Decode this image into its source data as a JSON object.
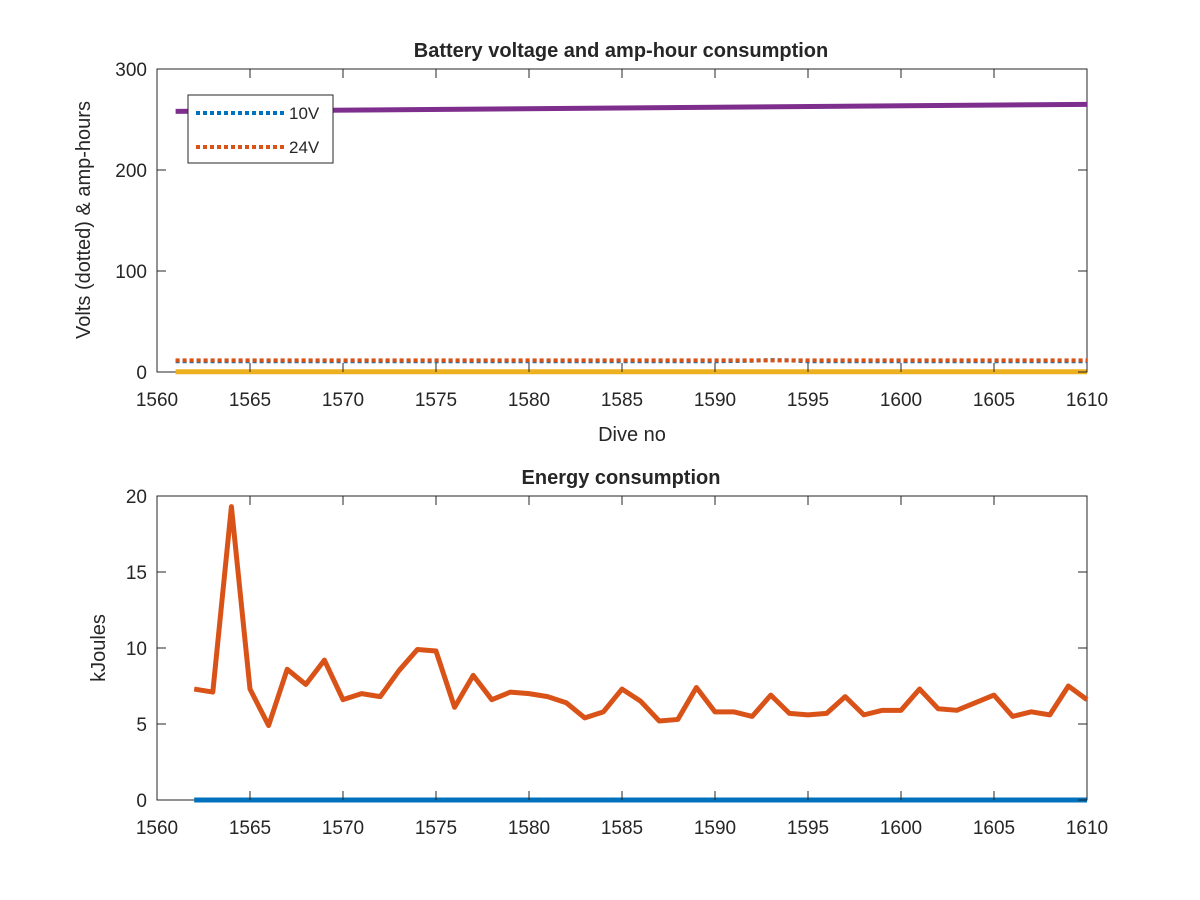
{
  "chart_data": [
    {
      "type": "line",
      "title": "Battery voltage and amp-hour consumption",
      "xlabel": "Dive no",
      "ylabel": "Volts (dotted) & amp-hours",
      "xlim": [
        1560,
        1610
      ],
      "ylim": [
        0,
        300
      ],
      "xticks": [
        1560,
        1565,
        1570,
        1575,
        1580,
        1585,
        1590,
        1595,
        1600,
        1605,
        1610
      ],
      "yticks": [
        0,
        100,
        200,
        300
      ],
      "legend": {
        "placement": "top-left",
        "entries": [
          "10V",
          "24V"
        ]
      },
      "series": [
        {
          "name": "10V",
          "style": "dotted",
          "color": "#0072BD",
          "x": [
            1561,
            1565,
            1570,
            1575,
            1580,
            1585,
            1590,
            1592,
            1593,
            1594,
            1595,
            1600,
            1605,
            1610
          ],
          "y": [
            10.6,
            10.6,
            10.6,
            10.6,
            10.6,
            10.6,
            10.6,
            11.2,
            11.8,
            11.5,
            10.6,
            10.6,
            10.6,
            10.6
          ]
        },
        {
          "name": "24V",
          "style": "dotted",
          "color": "#D95319",
          "x": [
            1561,
            1570,
            1580,
            1590,
            1600,
            1610
          ],
          "y": [
            11.5,
            11.5,
            11.5,
            11.5,
            11.5,
            11.5
          ]
        },
        {
          "style": "solid",
          "color": "#EDB120",
          "x": [
            1561,
            1610
          ],
          "y": [
            0.2,
            0.2
          ]
        },
        {
          "style": "solid",
          "color": "#7E2F8E",
          "x": [
            1561,
            1610
          ],
          "y": [
            258,
            265
          ]
        }
      ]
    },
    {
      "type": "line",
      "title": "Energy consumption",
      "xlabel": "",
      "ylabel": "kJoules",
      "xlim": [
        1560,
        1610
      ],
      "ylim": [
        0,
        20
      ],
      "xticks": [
        1560,
        1565,
        1570,
        1575,
        1580,
        1585,
        1590,
        1595,
        1600,
        1605,
        1610
      ],
      "yticks": [
        0,
        5,
        10,
        15,
        20
      ],
      "series": [
        {
          "style": "solid",
          "color": "#0072BD",
          "x": [
            1562,
            1610
          ],
          "y": [
            0,
            0
          ]
        },
        {
          "style": "solid",
          "color": "#D95319",
          "x": [
            1562,
            1563,
            1564,
            1565,
            1566,
            1567,
            1568,
            1569,
            1570,
            1571,
            1572,
            1573,
            1574,
            1575,
            1576,
            1577,
            1578,
            1579,
            1580,
            1581,
            1582,
            1583,
            1584,
            1585,
            1586,
            1587,
            1588,
            1589,
            1590,
            1591,
            1592,
            1593,
            1594,
            1595,
            1596,
            1597,
            1598,
            1599,
            1600,
            1601,
            1602,
            1603,
            1604,
            1605,
            1606,
            1607,
            1608,
            1609,
            1610
          ],
          "y": [
            7.3,
            7.1,
            19.3,
            7.3,
            4.9,
            8.6,
            7.6,
            9.2,
            6.6,
            7.0,
            6.8,
            8.5,
            9.9,
            9.8,
            6.1,
            8.2,
            6.6,
            7.1,
            7.0,
            6.8,
            6.4,
            5.4,
            5.8,
            7.3,
            6.5,
            5.2,
            5.3,
            7.4,
            5.8,
            5.8,
            5.5,
            6.9,
            5.7,
            5.6,
            5.7,
            6.8,
            5.6,
            5.9,
            5.9,
            7.3,
            6.0,
            5.9,
            6.4,
            6.9,
            5.5,
            5.8,
            5.6,
            7.5,
            6.6
          ]
        }
      ]
    }
  ]
}
